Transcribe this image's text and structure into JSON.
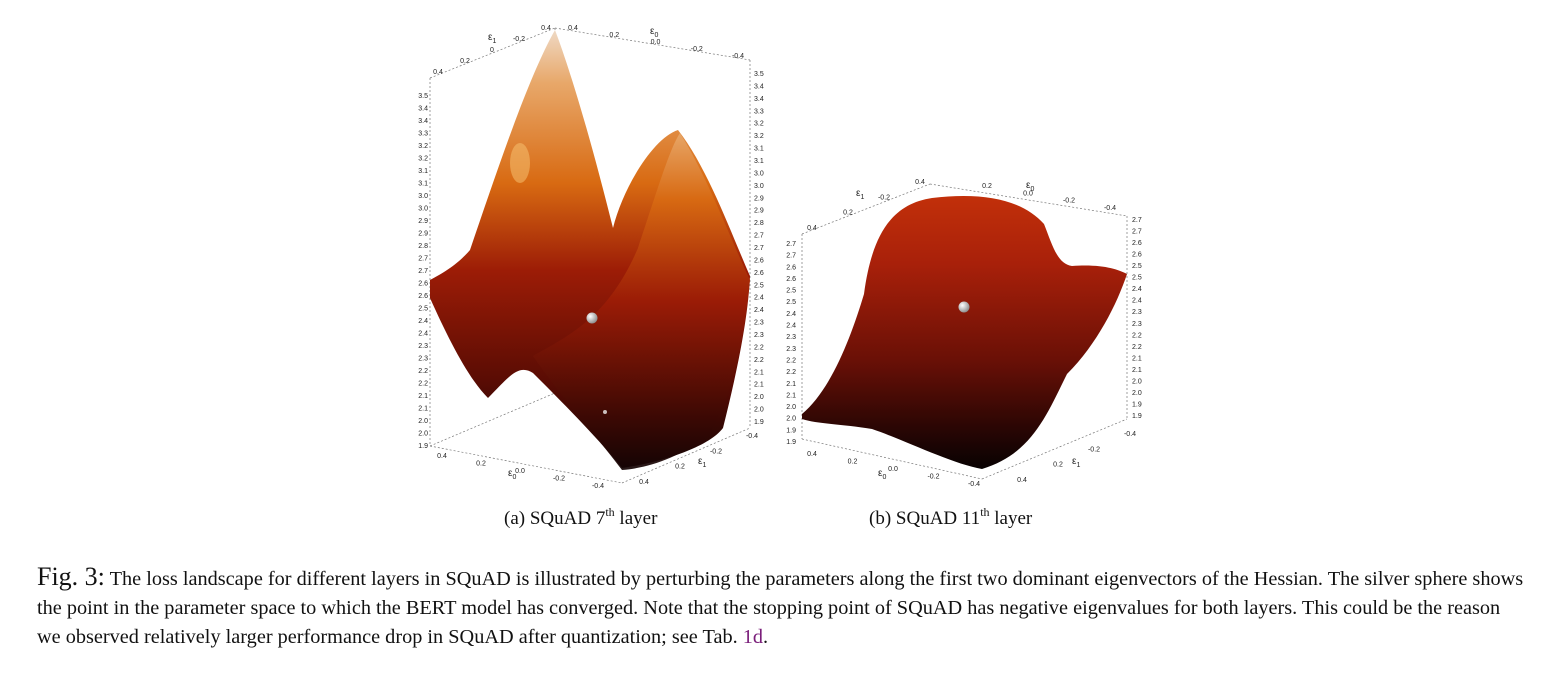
{
  "figure_a": {
    "caption_prefix": "(a) SQuAD 7",
    "caption_sup": "th",
    "caption_suffix": " layer",
    "z_ticks": [
      "3.5",
      "3.4",
      "3.4",
      "3.3",
      "3.2",
      "3.2",
      "3.1",
      "3.1",
      "3.0",
      "3.0",
      "2.9",
      "2.9",
      "2.8",
      "2.7",
      "2.7",
      "2.6",
      "2.6",
      "2.5",
      "2.4",
      "2.4",
      "2.3",
      "2.3",
      "2.2",
      "2.2",
      "2.1",
      "2.1",
      "2.0",
      "2.0",
      "1.9"
    ],
    "top_e1_label": "ε",
    "top_e1_sub": "1",
    "top_e0_label": "ε",
    "top_e0_sub": "0",
    "top_e1_ticks": [
      "0.4",
      "0.2",
      "0",
      "-0.2",
      "0.4"
    ],
    "top_e0_ticks": [
      "0.4",
      "0.2",
      "0.0",
      "-0.2",
      "-0.4"
    ],
    "bottom_e0_ticks": [
      "0.4",
      "0.2",
      "0.0",
      "-0.2",
      "-0.4"
    ],
    "bottom_e1_ticks": [
      "0.4",
      "0.2",
      "-0.2",
      "-0.4"
    ],
    "bottom_e0_label": "ε",
    "bottom_e0_sub": "0",
    "bottom_e1_label": "ε",
    "bottom_e1_sub": "1"
  },
  "figure_b": {
    "caption_prefix": "(b) SQuAD 11",
    "caption_sup": "th",
    "caption_suffix": " layer",
    "z_ticks": [
      "2.7",
      "2.7",
      "2.6",
      "2.6",
      "2.5",
      "2.5",
      "2.4",
      "2.4",
      "2.3",
      "2.3",
      "2.2",
      "2.2",
      "2.1",
      "2.1",
      "2.0",
      "2.0",
      "1.9",
      "1.9"
    ],
    "top_e1_ticks": [
      "0.4",
      "0.2",
      "-0.2",
      "0.4"
    ],
    "top_e0_ticks": [
      "0.2",
      "0.0",
      "-0.2",
      "-0.4"
    ],
    "bottom_e0_ticks": [
      "0.4",
      "0.2",
      "0.0",
      "-0.2",
      "-0.4"
    ],
    "bottom_e1_ticks": [
      "0.4",
      "0.2",
      "-0.2",
      "-0.4"
    ],
    "axis_e_label": "ε",
    "axis_e0_sub": "0",
    "axis_e1_sub": "1"
  },
  "caption": {
    "label": "Fig. 3:",
    "text": " The loss landscape for different layers in SQuAD is illustrated by perturbing the parameters along the first two dominant eigenvectors of the Hessian. The silver sphere shows the point in the parameter space to which the BERT model has converged. Note that the stopping point of SQuAD has negative eigenvalues for both layers. This could be the reason we observed relatively larger performance drop in SQuAD after quantization; see Tab. ",
    "ref": "1d",
    "end": "."
  },
  "colors": {
    "surface_dark": "#140404",
    "surface_mid": "#9c1c06",
    "surface_orange": "#d86a12",
    "surface_peak": "#efd9c4",
    "link": "#7a1e7a"
  }
}
